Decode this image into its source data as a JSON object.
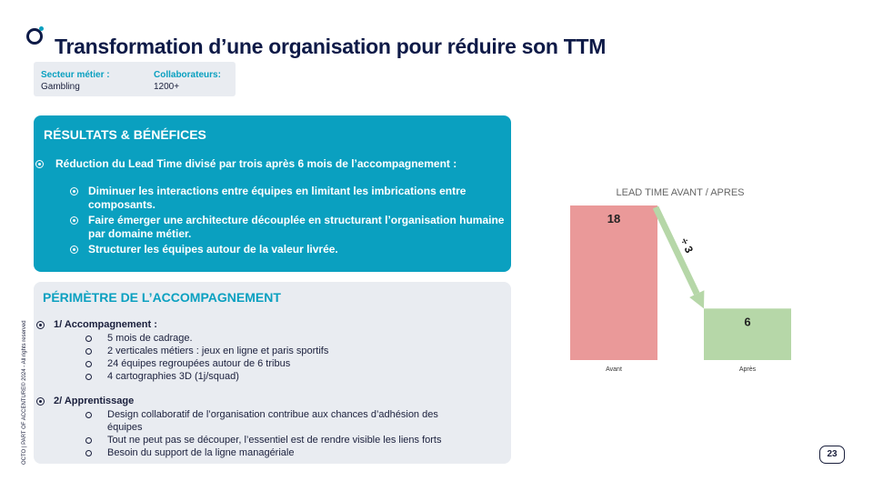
{
  "title": "Transformation d’une organisation pour réduire son TTM",
  "meta": {
    "sector_label": "Secteur métier :",
    "sector_value": "Gambling",
    "collab_label": "Collaborateurs:",
    "collab_value": "1200+"
  },
  "results": {
    "heading": "RÉSULTATS & BÉNÉFICES",
    "main": "Réduction du Lead Time divisé par trois après 6 mois de l’accompagnement :",
    "subs": [
      "Diminuer les interactions entre équipes en limitant les imbrications entre composants.",
      "Faire émerger  une architecture découplée en structurant l’organisation humaine par domaine métier.",
      "Structurer les équipes autour de la valeur livrée."
    ]
  },
  "perimeter": {
    "heading": "PÉRIMÈTRE DE L’ACCOMPAGNEMENT",
    "sections": [
      {
        "title": "1/ Accompagnement :",
        "items": [
          "5 mois de cadrage.",
          "2 verticales métiers : jeux en ligne et paris sportifs",
          "24 équipes regroupées autour de 6 tribus",
          "4 cartographies 3D (1j/squad)"
        ]
      },
      {
        "title": "2/ Apprentissage",
        "items": [
          "Design collaboratif de l’organisation contribue aux chances d’adhésion des équipes",
          "Tout ne peut pas se découper, l’essentiel est de rendre visible les liens forts",
          "Besoin du support de la ligne managériale"
        ]
      }
    ]
  },
  "vertical_text": "OCTO | PART OF ACCENTURE© 2024 - All rights reserved",
  "page_number": "23",
  "chart_data": {
    "type": "bar",
    "title": "LEAD TIME AVANT / APRES",
    "categories": [
      "Avant",
      "Après"
    ],
    "values": [
      18,
      6
    ],
    "colors": [
      "#ea9999",
      "#b6d7a8"
    ],
    "annotation": "÷ 3",
    "ylim": [
      0,
      18
    ]
  }
}
